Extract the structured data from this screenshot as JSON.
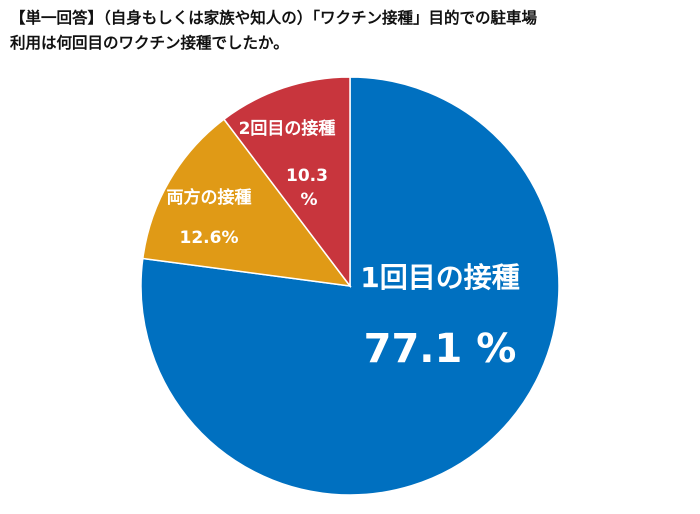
{
  "title_lines": [
    "【単一回答】（自身もしくは家族や知人の）「ワクチン接種」目的での駐車場",
    "利用は何回目のワクチン接種でしたか。"
  ],
  "chart_data": {
    "type": "pie",
    "title": "【単一回答】（自身もしくは家族や知人の）「ワクチン接種」目的での駐車場利用は何回目のワクチン接種でしたか。",
    "start": "top",
    "direction": "clockwise",
    "slices": [
      {
        "label": "1回目の接種",
        "value": 77.1,
        "value_text": "77.1 %",
        "color": "#0070c0"
      },
      {
        "label": "両方の接種",
        "value": 12.6,
        "value_text": "12.6%",
        "color": "#e09a16"
      },
      {
        "label": "2回目の接種",
        "value": 10.3,
        "value_text_lines": [
          "10.3",
          "%"
        ],
        "color": "#c8353d"
      }
    ]
  }
}
